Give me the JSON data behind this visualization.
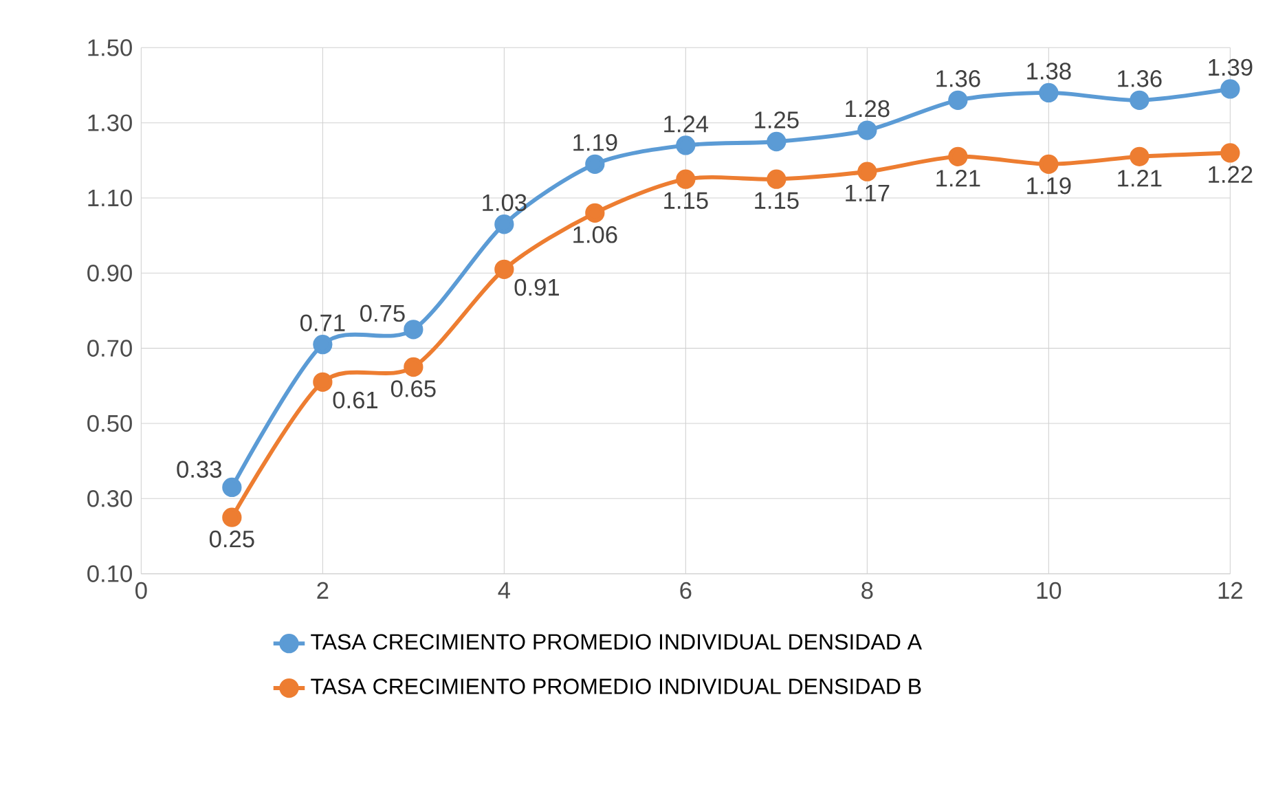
{
  "chart_data": {
    "type": "line",
    "x": [
      1,
      2,
      3,
      4,
      5,
      6,
      7,
      8,
      9,
      10,
      11,
      12
    ],
    "series": [
      {
        "name": "TASA CRECIMIENTO PROMEDIO INDIVIDUAL DENSIDAD A",
        "color": "#5b9bd5",
        "values": [
          0.33,
          0.71,
          0.75,
          1.03,
          1.19,
          1.24,
          1.25,
          1.28,
          1.36,
          1.38,
          1.36,
          1.39
        ]
      },
      {
        "name": "TASA CRECIMIENTO PROMEDIO INDIVIDUAL DENSIDAD B",
        "color": "#ed7d31",
        "values": [
          0.25,
          0.61,
          0.65,
          0.91,
          1.06,
          1.15,
          1.15,
          1.17,
          1.21,
          1.19,
          1.21,
          1.22
        ]
      }
    ],
    "xlim": [
      0,
      12
    ],
    "xticks": [
      0,
      2,
      4,
      6,
      8,
      10,
      12
    ],
    "ylim": [
      0.1,
      1.5
    ],
    "yticks": [
      {
        "value": 0.1,
        "label": "0.10"
      },
      {
        "value": 0.3,
        "label": "0.30"
      },
      {
        "value": 0.5,
        "label": "0.50"
      },
      {
        "value": 0.7,
        "label": "0.70"
      },
      {
        "value": 0.9,
        "label": "0.90"
      },
      {
        "value": 1.1,
        "label": "1.10"
      },
      {
        "value": 1.3,
        "label": "1.30"
      },
      {
        "value": 1.5,
        "label": "1.50"
      }
    ],
    "grid": true,
    "legend": "bottom",
    "marker": "circle",
    "data_labels": true
  }
}
